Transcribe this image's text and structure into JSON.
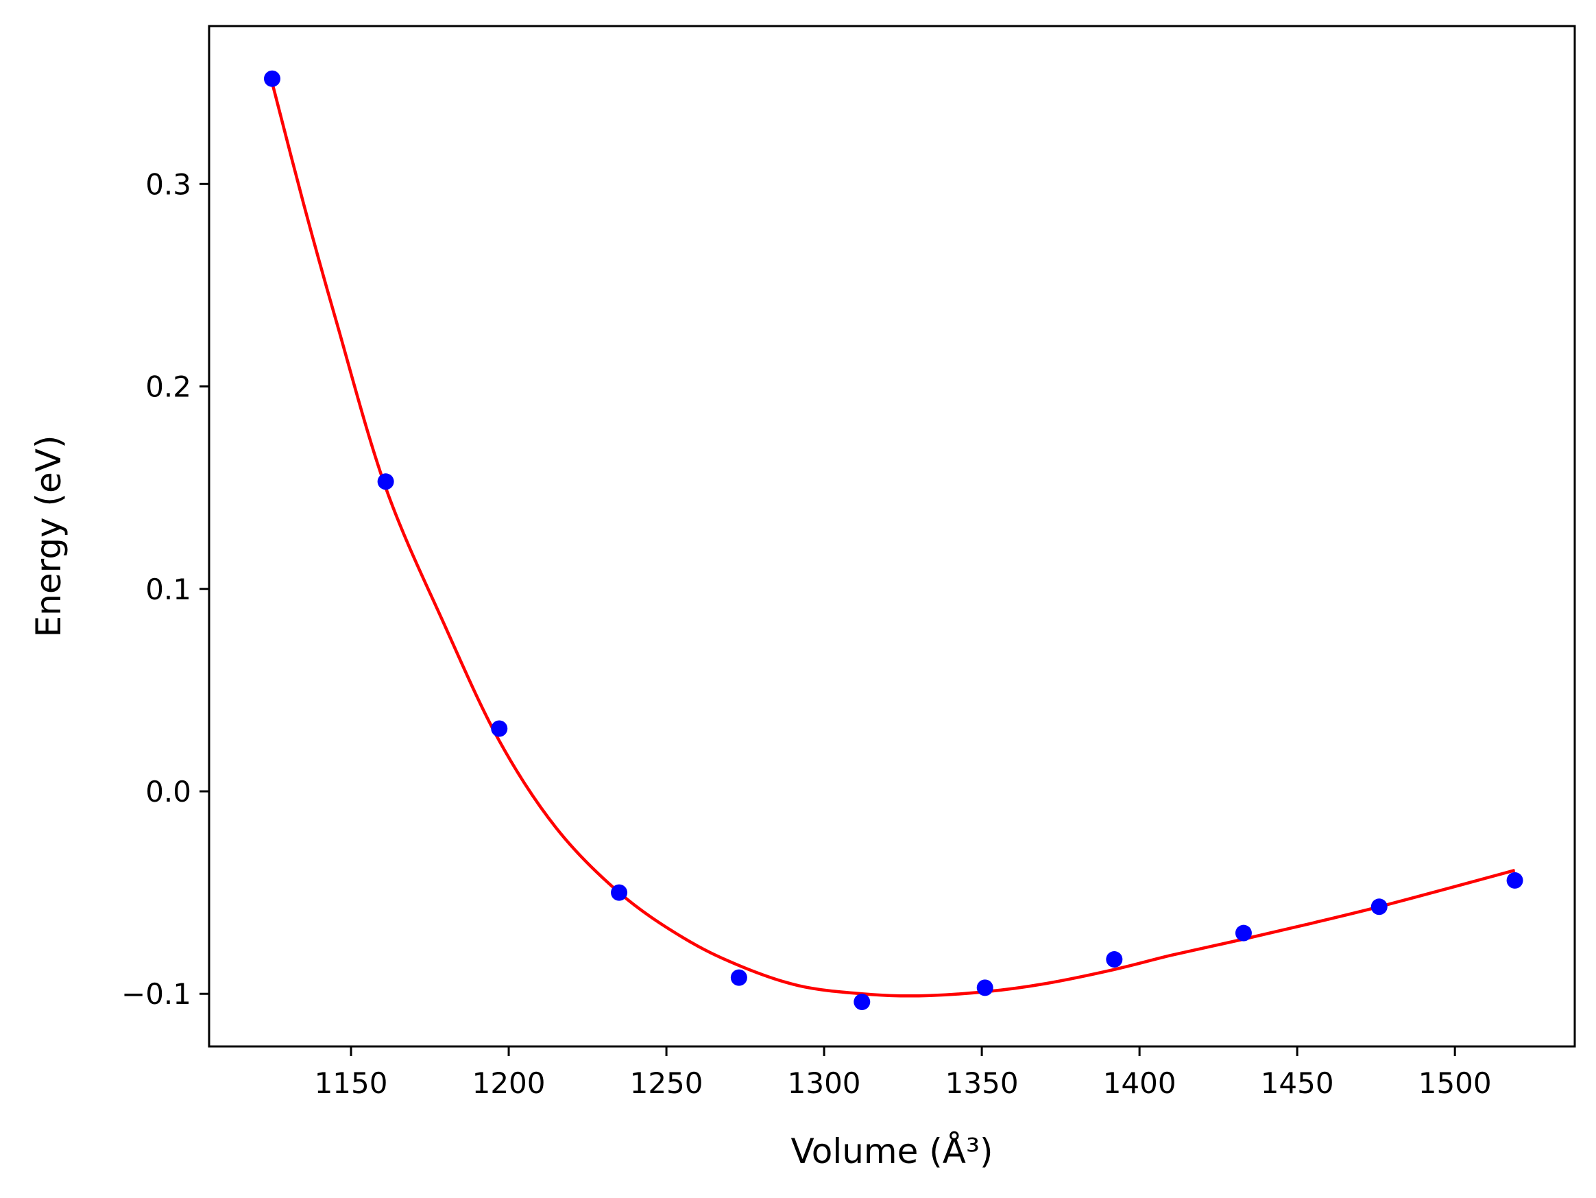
{
  "chart_data": {
    "type": "scatter",
    "title": "",
    "xlabel": "Volume (Å³)",
    "ylabel": "Energy (eV)",
    "xlim": [
      1105,
      1538
    ],
    "ylim": [
      -0.126,
      0.378
    ],
    "xticks": [
      1150,
      1200,
      1250,
      1300,
      1350,
      1400,
      1450,
      1500
    ],
    "xtick_labels": [
      "1150",
      "1200",
      "1250",
      "1300",
      "1350",
      "1400",
      "1450",
      "1500"
    ],
    "yticks": [
      -0.1,
      0.0,
      0.1,
      0.2,
      0.3
    ],
    "ytick_labels": [
      "−0.1",
      "0.0",
      "0.1",
      "0.2",
      "0.3"
    ],
    "grid": false,
    "legend": "none",
    "series": [
      {
        "kind": "scatter",
        "color": "#0000ff",
        "x": [
          1125,
          1161,
          1197,
          1235,
          1273,
          1312,
          1351,
          1392,
          1433,
          1476,
          1519
        ],
        "y": [
          0.352,
          0.153,
          0.031,
          -0.05,
          -0.092,
          -0.104,
          -0.097,
          -0.083,
          -0.07,
          -0.057,
          -0.044
        ]
      },
      {
        "kind": "line",
        "color": "#ff0000",
        "x": [
          1125,
          1135,
          1145,
          1161,
          1180,
          1197,
          1215,
          1235,
          1255,
          1273,
          1292,
          1312,
          1330,
          1351,
          1370,
          1392,
          1410,
          1433,
          1455,
          1476,
          1500,
          1519
        ],
        "y": [
          0.35,
          0.29,
          0.234,
          0.15,
          0.081,
          0.025,
          -0.018,
          -0.05,
          -0.072,
          -0.086,
          -0.096,
          -0.1,
          -0.101,
          -0.099,
          -0.095,
          -0.088,
          -0.081,
          -0.073,
          -0.065,
          -0.057,
          -0.047,
          -0.039
        ]
      }
    ]
  }
}
